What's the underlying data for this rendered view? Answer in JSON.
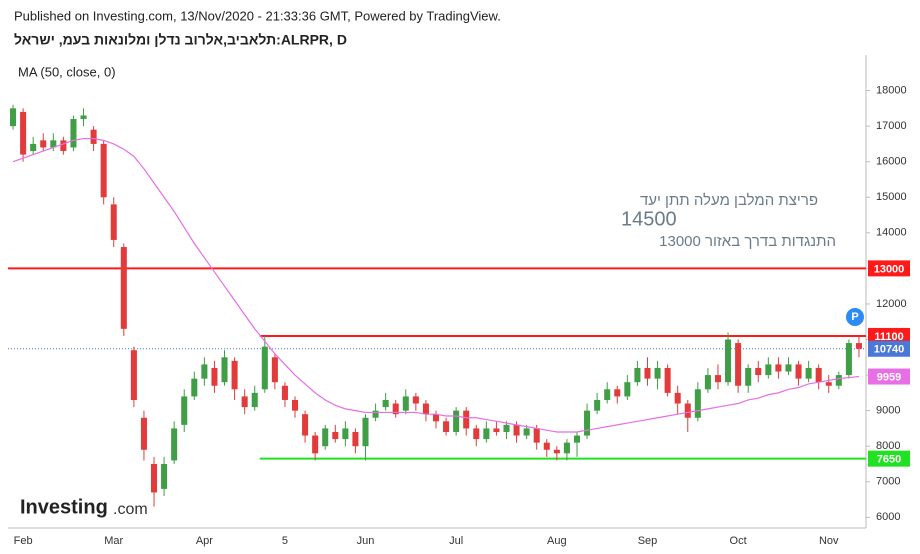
{
  "header": "Published on Investing.com, 13/Nov/2020 - 21:33:36 GMT, Powered by TradingView.",
  "chart_data": {
    "type": "candlestick",
    "title": "תלאביב,אלרוב נדלן ומלונאות בעמ, ישראל:ALRPR, D",
    "categories": [
      null,
      "Feb",
      null,
      null,
      null,
      null,
      null,
      null,
      null,
      null,
      "Mar",
      null,
      null,
      null,
      null,
      null,
      null,
      null,
      null,
      "Apr",
      null,
      null,
      null,
      null,
      null,
      null,
      null,
      "5",
      null,
      null,
      null,
      null,
      null,
      null,
      null,
      "Jun",
      null,
      null,
      null,
      null,
      null,
      null,
      null,
      null,
      "Jul",
      null,
      null,
      null,
      null,
      null,
      null,
      null,
      null,
      null,
      "Aug",
      null,
      null,
      null,
      null,
      null,
      null,
      null,
      null,
      "Sep",
      null,
      null,
      null,
      null,
      null,
      null,
      null,
      null,
      "Oct",
      null,
      null,
      null,
      null,
      null,
      null,
      null,
      null,
      "Nov",
      null,
      null,
      null
    ],
    "open": [
      17000,
      17400,
      16300,
      16600,
      16400,
      16600,
      16400,
      17200,
      16900,
      16500,
      14800,
      13600,
      10700,
      8800,
      7500,
      6800,
      7600,
      8600,
      9400,
      9900,
      10200,
      9800,
      10400,
      9400,
      9100,
      9600,
      10500,
      9700,
      9300,
      8900,
      8300,
      8000,
      8400,
      8200,
      8400,
      8000,
      8800,
      9100,
      9200,
      9000,
      9400,
      9200,
      8900,
      8700,
      8400,
      9000,
      8500,
      8200,
      8500,
      8400,
      8600,
      8300,
      8500,
      8100,
      7900,
      7800,
      8100,
      8300,
      9000,
      9300,
      9600,
      9400,
      9800,
      10200,
      9900,
      10200,
      9500,
      9200,
      8800,
      9600,
      10000,
      9800,
      10900,
      9700,
      10200,
      10000,
      10300,
      10100,
      10300,
      9900,
      10200,
      9800,
      9700,
      10000,
      10900
    ],
    "high": [
      17600,
      17500,
      16700,
      16800,
      16800,
      16700,
      17300,
      17500,
      17000,
      16600,
      15000,
      13700,
      10800,
      9000,
      7700,
      7700,
      8700,
      9600,
      10100,
      10500,
      10400,
      10700,
      10500,
      9600,
      9700,
      11100,
      10600,
      9800,
      9400,
      9000,
      8400,
      8600,
      8600,
      8700,
      8500,
      8900,
      9200,
      9500,
      9300,
      9600,
      9500,
      9300,
      9000,
      8800,
      9100,
      9100,
      8600,
      8700,
      8700,
      8700,
      8700,
      8600,
      8600,
      8200,
      8000,
      8200,
      8400,
      9200,
      9500,
      9800,
      9700,
      10000,
      10400,
      10500,
      10400,
      10300,
      9700,
      9300,
      9800,
      10200,
      10300,
      11200,
      11000,
      10300,
      10400,
      10500,
      10500,
      10500,
      10400,
      10400,
      10300,
      10000,
      10100,
      11000,
      11100
    ],
    "low": [
      16900,
      16000,
      16200,
      16300,
      16300,
      16200,
      16300,
      17000,
      16300,
      14800,
      13600,
      11100,
      9100,
      7600,
      6300,
      6600,
      7500,
      8400,
      9300,
      9700,
      9500,
      9700,
      9300,
      8900,
      9000,
      9500,
      9600,
      9100,
      8800,
      8100,
      7600,
      7900,
      8100,
      8000,
      7800,
      7600,
      8700,
      9000,
      8800,
      8900,
      9000,
      8700,
      8500,
      8300,
      8300,
      8300,
      8000,
      8100,
      8300,
      8200,
      8100,
      8200,
      7900,
      7700,
      7600,
      7600,
      7700,
      8200,
      8900,
      9200,
      9200,
      9300,
      9700,
      9700,
      9600,
      9400,
      8900,
      8400,
      8700,
      9500,
      9600,
      9700,
      9500,
      9500,
      9800,
      9900,
      9900,
      10000,
      9700,
      9800,
      9600,
      9500,
      9600,
      9900,
      10500
    ],
    "close": [
      17500,
      16200,
      16500,
      16400,
      16600,
      16300,
      17200,
      17300,
      16500,
      15000,
      13800,
      11300,
      9300,
      7900,
      6700,
      7500,
      8500,
      9400,
      9900,
      10300,
      9700,
      10500,
      9600,
      9100,
      9500,
      10800,
      9800,
      9300,
      9000,
      8300,
      7800,
      8500,
      8200,
      8500,
      8000,
      8800,
      9000,
      9300,
      8900,
      9400,
      9200,
      8900,
      8700,
      8400,
      9000,
      8500,
      8200,
      8500,
      8400,
      8600,
      8300,
      8500,
      8100,
      7900,
      7800,
      8100,
      8300,
      9000,
      9300,
      9600,
      9400,
      9800,
      10200,
      9900,
      10200,
      9500,
      9200,
      8800,
      9600,
      10000,
      9800,
      11000,
      9700,
      10200,
      10000,
      10300,
      10100,
      10300,
      9900,
      10200,
      9800,
      9700,
      10000,
      10900,
      10740
    ],
    "up_color": "#3f9e46",
    "down_color": "#e23b3b",
    "ma": {
      "label": "MA (50, close, 0)",
      "color": "#e86ee6",
      "values": [
        16000,
        16100,
        16200,
        16300,
        16400,
        16500,
        16600,
        16650,
        16650,
        16600,
        16500,
        16350,
        16150,
        15800,
        15400,
        15000,
        14600,
        14150,
        13700,
        13300,
        12900,
        12500,
        12100,
        11700,
        11300,
        10950,
        10600,
        10300,
        10000,
        9750,
        9500,
        9300,
        9150,
        9050,
        9000,
        8950,
        8950,
        8950,
        8950,
        8950,
        8950,
        8900,
        8900,
        8850,
        8850,
        8800,
        8800,
        8750,
        8700,
        8650,
        8600,
        8550,
        8500,
        8450,
        8400,
        8400,
        8400,
        8450,
        8500,
        8550,
        8600,
        8650,
        8700,
        8750,
        8800,
        8850,
        8900,
        8950,
        9000,
        9050,
        9100,
        9150,
        9200,
        9300,
        9350,
        9450,
        9500,
        9600,
        9650,
        9750,
        9800,
        9850,
        9900,
        9930,
        9959
      ]
    },
    "hlines": [
      {
        "value": 13000,
        "color": "#ff1a1a",
        "start": 0
      },
      {
        "value": 11100,
        "color": "#ff1a1a",
        "start": 25
      },
      {
        "value": 7650,
        "color": "#22e022",
        "start": 25
      }
    ],
    "last_price_color": "#4a78d6",
    "ylim": [
      5700,
      19000
    ],
    "yticks": [
      6000,
      7000,
      8000,
      9000,
      10000,
      11000,
      12000,
      13000,
      14000,
      15000,
      16000,
      17000,
      18000
    ],
    "annotation": [
      "פריצת המלבן מעלה תתן יעד",
      "14500",
      "התנגדות בדרך באזור 13000"
    ],
    "badge": "P"
  },
  "logo": [
    "Investing",
    ".com"
  ]
}
